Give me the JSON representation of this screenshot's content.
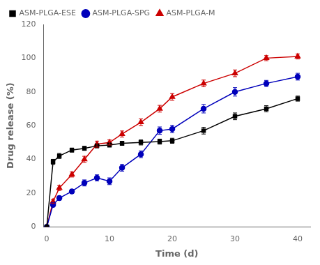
{
  "chart_data": {
    "type": "line",
    "xlabel": "Time (d)",
    "ylabel": "Drug release (%)",
    "x": [
      0,
      1,
      2,
      4,
      6,
      8,
      10,
      12,
      15,
      18,
      20,
      25,
      30,
      35,
      40
    ],
    "series": [
      {
        "name": "ASM-PLGA-ESE",
        "color": "#000000",
        "marker": "square",
        "values": [
          0,
          38.5,
          42,
          45.5,
          46.5,
          48,
          48.5,
          49.5,
          50,
          50.5,
          51,
          57,
          65.5,
          70,
          76
        ],
        "errors": [
          0,
          1.5,
          1.5,
          1.2,
          1.2,
          1.2,
          1.2,
          1.2,
          1.5,
          1.5,
          1.5,
          2.0,
          2.0,
          1.8,
          1.5
        ]
      },
      {
        "name": "ASM-PLGA-SPG",
        "color": "#0000bb",
        "marker": "circle",
        "values": [
          0,
          13,
          17,
          21,
          26,
          29,
          27,
          35,
          43,
          57,
          58,
          70,
          80,
          85,
          89
        ],
        "errors": [
          0,
          1.2,
          1.2,
          1.2,
          1.8,
          1.8,
          2.0,
          2.0,
          2.0,
          2.2,
          2.2,
          2.5,
          2.5,
          1.8,
          2.0
        ]
      },
      {
        "name": "ASM-PLGA-M",
        "color": "#cc0000",
        "marker": "triangle",
        "values": [
          0,
          15,
          23,
          31,
          40,
          49,
          50,
          55,
          62,
          70,
          77,
          85,
          91,
          100,
          101
        ],
        "errors": [
          0,
          1.2,
          1.5,
          1.5,
          1.8,
          1.8,
          1.5,
          1.8,
          2.0,
          2.0,
          2.0,
          2.0,
          2.0,
          1.5,
          1.5
        ]
      }
    ],
    "xlim": [
      -0.5,
      42
    ],
    "ylim": [
      0,
      120
    ],
    "xticks": [
      0,
      10,
      20,
      30,
      40
    ],
    "yticks": [
      0,
      20,
      40,
      60,
      80,
      100,
      120
    ],
    "grid": false,
    "legend": "upper left"
  }
}
